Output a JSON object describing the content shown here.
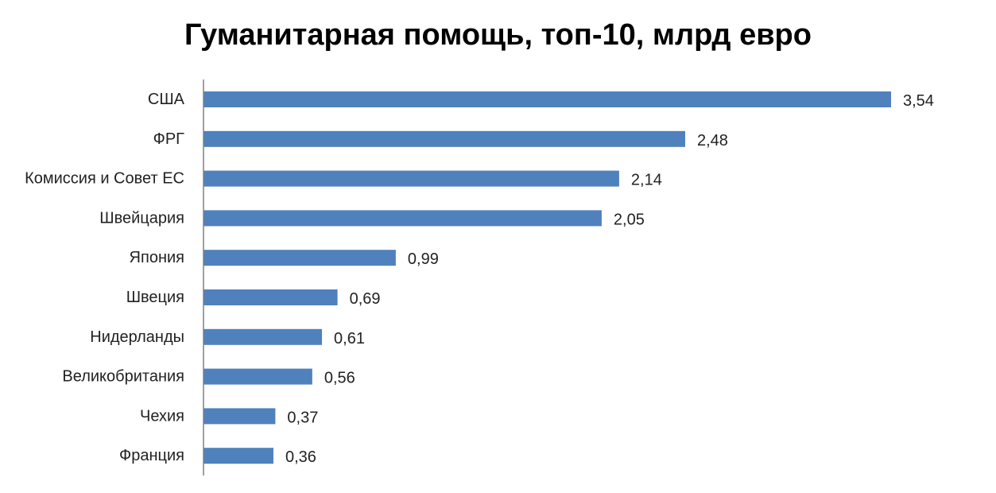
{
  "chart_data": {
    "type": "bar",
    "orientation": "horizontal",
    "title": "Гуманитарная помощь, топ-10, млрд евро",
    "categories": [
      "США",
      "ФРГ",
      "Комиссия и Совет ЕС",
      "Швейцария",
      "Япония",
      "Швеция",
      "Нидерланды",
      "Великобритания",
      "Чехия",
      "Франция"
    ],
    "values": [
      3.54,
      2.48,
      2.14,
      2.05,
      0.99,
      0.69,
      0.61,
      0.56,
      0.37,
      0.36
    ],
    "value_labels": [
      "3,54",
      "2,48",
      "2,14",
      "2,05",
      "0,99",
      "0,69",
      "0,61",
      "0,56",
      "0,37",
      "0,36"
    ],
    "xlabel": "",
    "ylabel": "",
    "xlim": [
      0,
      3.54
    ],
    "grid": false,
    "legend": "none",
    "colors": {
      "bar": "#4F81BD",
      "axis": "#808080",
      "text": "#222222"
    }
  }
}
